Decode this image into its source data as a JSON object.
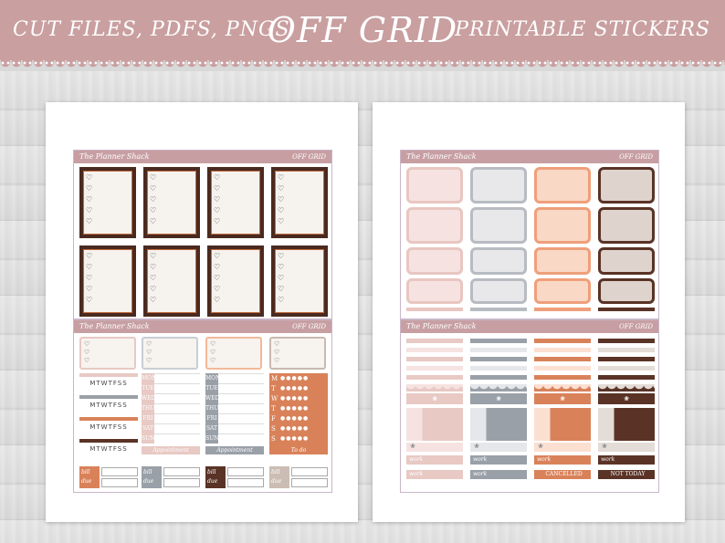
{
  "header": {
    "left_text": "CUT FILES, PDFS, PNGS",
    "title": "OFF GRID",
    "right_text": "PRINTABLE STICKERS"
  },
  "sheets": {
    "brand": "The Planner Shack",
    "tag": "OFF GRID"
  },
  "left_bottom": {
    "weekdays": "MTWTFSS",
    "days": [
      "MON",
      "TUE",
      "WED",
      "THU",
      "FRI",
      "SAT",
      "SUN"
    ],
    "month_letters": [
      "M",
      "T",
      "W",
      "T",
      "F",
      "S",
      "S"
    ],
    "captions": [
      "Appointment",
      "Appointment",
      "To do"
    ],
    "bill_label": "bill due"
  },
  "right_bottom": {
    "work_label": "work",
    "cancelled": "CANCELLED",
    "not_today": "NOT TODAY"
  },
  "colors": {
    "header_bg": "#c99fa0",
    "pink": "#e8c9c4",
    "grey": "#9aa0a8",
    "peach": "#f3b89a",
    "rust": "#d9825a",
    "brown": "#5a3326",
    "taupe": "#cbbdb3"
  },
  "icons": [
    "heart-icon",
    "bow-icon",
    "lace-border"
  ]
}
